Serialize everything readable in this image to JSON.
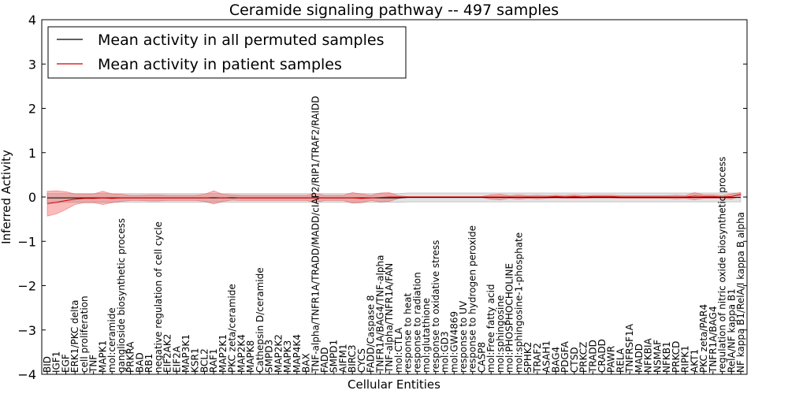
{
  "chart_data": {
    "type": "line",
    "title": "Ceramide signaling pathway -- 497 samples",
    "xlabel": "Cellular Entities",
    "ylabel": "Inferred Activity",
    "ylim": [
      -4,
      4
    ],
    "yticks": [
      -4,
      -3,
      -2,
      -1,
      0,
      1,
      2,
      3,
      4
    ],
    "ytick_labels": [
      "−4",
      "−3",
      "−2",
      "−1",
      "0",
      "1",
      "2",
      "3",
      "4"
    ],
    "legend_position": "top-left",
    "categories": [
      "BID",
      "IGF1",
      "EGF",
      "ERK1/PKC delta",
      "cell proliferation",
      "TNF",
      "MAPK1",
      "mol:ceramide",
      "ganglioside biosynthetic process",
      "PRKRA",
      "BAD",
      "RB1",
      "negative regulation of cell cycle",
      "EIF2AK2",
      "EIF2A",
      "MAP3K1",
      "KSR1",
      "BCL2",
      "RAF1",
      "MAP2K1",
      "PKC zeta/ceramide",
      "MAP2K4",
      "MAPK8",
      "Cathepsin D/ceramide",
      "SMPD3",
      "MAP2K2",
      "MAPK3",
      "MAP4K4",
      "BAX",
      "TNF-alpha/TNFR1A/TRADD/MADD/cIAP2/RIP1/TRAF2/RAIDD",
      "FADD",
      "SMPD1",
      "AIFM1",
      "BIRC3",
      "CYCS",
      "FADD/Caspase 8",
      "TNFR1A/BAG4/TNF-alpha",
      "TNF-alpha/TNFR1A/FAN",
      "mol:CTLA",
      "response to heat",
      "response to radiation",
      "mol:glutathione",
      "response to oxidative stress",
      "mol:GD3",
      "mol:GW4869",
      "response to UV",
      "response to hydrogen peroxide",
      "CASP8",
      "mol:Free fatty acid",
      "mol:sphingosine",
      "mol:PHOSPHOCHOLINE",
      "mol:sphingosine-1-phosphate",
      "SPHK2",
      "TRAF2",
      "ASAH1",
      "BAG4",
      "PDGFA",
      "CTSD",
      "PRKCZ",
      "TRADD",
      "CRADD",
      "PAWR",
      "RELA",
      "TNFRSF1A",
      "MADD",
      "NFKBIA",
      "NSMAF",
      "NFKB1",
      "PRKCD",
      "RIPK1",
      "AKT1",
      "PKC zeta/PAR4",
      "TNFR1A/BAG4",
      "regulation of nitric oxide biosynthetic process",
      "RelA/NF kappa B1",
      "NF kappa B1/RelA/I kappa B alpha"
    ],
    "series": [
      {
        "name": "Mean activity in all permuted samples",
        "color": "#000000",
        "values": [
          -0.02,
          -0.02,
          -0.02,
          -0.02,
          -0.02,
          -0.02,
          -0.02,
          -0.02,
          -0.02,
          -0.02,
          -0.02,
          -0.02,
          -0.02,
          -0.02,
          -0.02,
          -0.02,
          -0.02,
          -0.02,
          -0.02,
          -0.02,
          -0.02,
          -0.02,
          -0.02,
          -0.02,
          -0.02,
          -0.02,
          -0.02,
          -0.02,
          -0.02,
          -0.02,
          -0.02,
          -0.02,
          -0.02,
          -0.02,
          -0.02,
          -0.02,
          -0.02,
          -0.02,
          -0.02,
          -0.01,
          -0.01,
          -0.01,
          -0.01,
          -0.01,
          -0.01,
          -0.01,
          -0.01,
          -0.01,
          -0.01,
          -0.01,
          -0.01,
          -0.01,
          -0.01,
          -0.01,
          -0.01,
          -0.01,
          -0.01,
          -0.01,
          -0.01,
          -0.01,
          -0.01,
          -0.01,
          -0.01,
          -0.01,
          -0.01,
          -0.01,
          -0.01,
          -0.01,
          -0.01,
          -0.01,
          -0.01,
          -0.01,
          -0.01,
          -0.01,
          -0.01,
          -0.01
        ],
        "band": [
          0.1,
          0.1,
          0.1,
          0.1,
          0.1,
          0.1,
          0.1,
          0.1,
          0.1,
          0.1,
          0.1,
          0.1,
          0.1,
          0.1,
          0.1,
          0.1,
          0.1,
          0.1,
          0.1,
          0.1,
          0.1,
          0.1,
          0.1,
          0.1,
          0.1,
          0.1,
          0.1,
          0.1,
          0.1,
          0.1,
          0.1,
          0.1,
          0.1,
          0.1,
          0.1,
          0.1,
          0.1,
          0.1,
          0.1,
          0.1,
          0.1,
          0.1,
          0.1,
          0.1,
          0.1,
          0.1,
          0.1,
          0.1,
          0.1,
          0.1,
          0.1,
          0.1,
          0.1,
          0.1,
          0.1,
          0.1,
          0.1,
          0.1,
          0.1,
          0.1,
          0.1,
          0.1,
          0.1,
          0.1,
          0.1,
          0.1,
          0.1,
          0.1,
          0.1,
          0.1,
          0.1,
          0.1,
          0.1,
          0.1,
          0.1,
          0.1
        ]
      },
      {
        "name": "Mean activity in patient samples",
        "color": "#d40000",
        "values": [
          -0.15,
          -0.12,
          -0.08,
          -0.05,
          -0.03,
          -0.03,
          -0.02,
          -0.03,
          -0.02,
          -0.02,
          -0.02,
          -0.02,
          -0.02,
          -0.02,
          -0.02,
          -0.02,
          -0.02,
          -0.02,
          -0.01,
          -0.02,
          -0.01,
          -0.02,
          -0.02,
          -0.02,
          -0.02,
          -0.02,
          -0.02,
          -0.02,
          -0.02,
          -0.02,
          -0.02,
          -0.02,
          -0.02,
          -0.02,
          -0.03,
          -0.02,
          -0.01,
          0.0,
          0.0,
          0.0,
          0.0,
          0.0,
          0.0,
          0.0,
          0.0,
          0.0,
          0.0,
          0.0,
          0.0,
          0.0,
          0.0,
          0.0,
          0.0,
          0.0,
          0.0,
          0.01,
          0.0,
          0.01,
          0.0,
          0.01,
          0.01,
          0.01,
          0.0,
          0.0,
          0.0,
          0.0,
          0.0,
          0.0,
          0.0,
          0.0,
          0.02,
          0.01,
          0.01,
          0.0,
          0.01,
          0.06
        ],
        "band": [
          0.28,
          0.26,
          0.2,
          0.12,
          0.1,
          0.1,
          0.15,
          0.1,
          0.08,
          0.06,
          0.06,
          0.07,
          0.07,
          0.06,
          0.06,
          0.06,
          0.06,
          0.08,
          0.15,
          0.08,
          0.06,
          0.06,
          0.06,
          0.06,
          0.06,
          0.06,
          0.06,
          0.06,
          0.06,
          0.1,
          0.06,
          0.06,
          0.06,
          0.12,
          0.1,
          0.06,
          0.1,
          0.1,
          0.03,
          0.01,
          0.01,
          0.01,
          0.01,
          0.01,
          0.01,
          0.01,
          0.01,
          0.01,
          0.05,
          0.06,
          0.03,
          0.05,
          0.03,
          0.04,
          0.03,
          0.03,
          0.03,
          0.04,
          0.03,
          0.03,
          0.03,
          0.03,
          0.03,
          0.03,
          0.03,
          0.03,
          0.03,
          0.03,
          0.04,
          0.03,
          0.08,
          0.04,
          0.04,
          0.03,
          0.06,
          0.04
        ]
      }
    ]
  }
}
